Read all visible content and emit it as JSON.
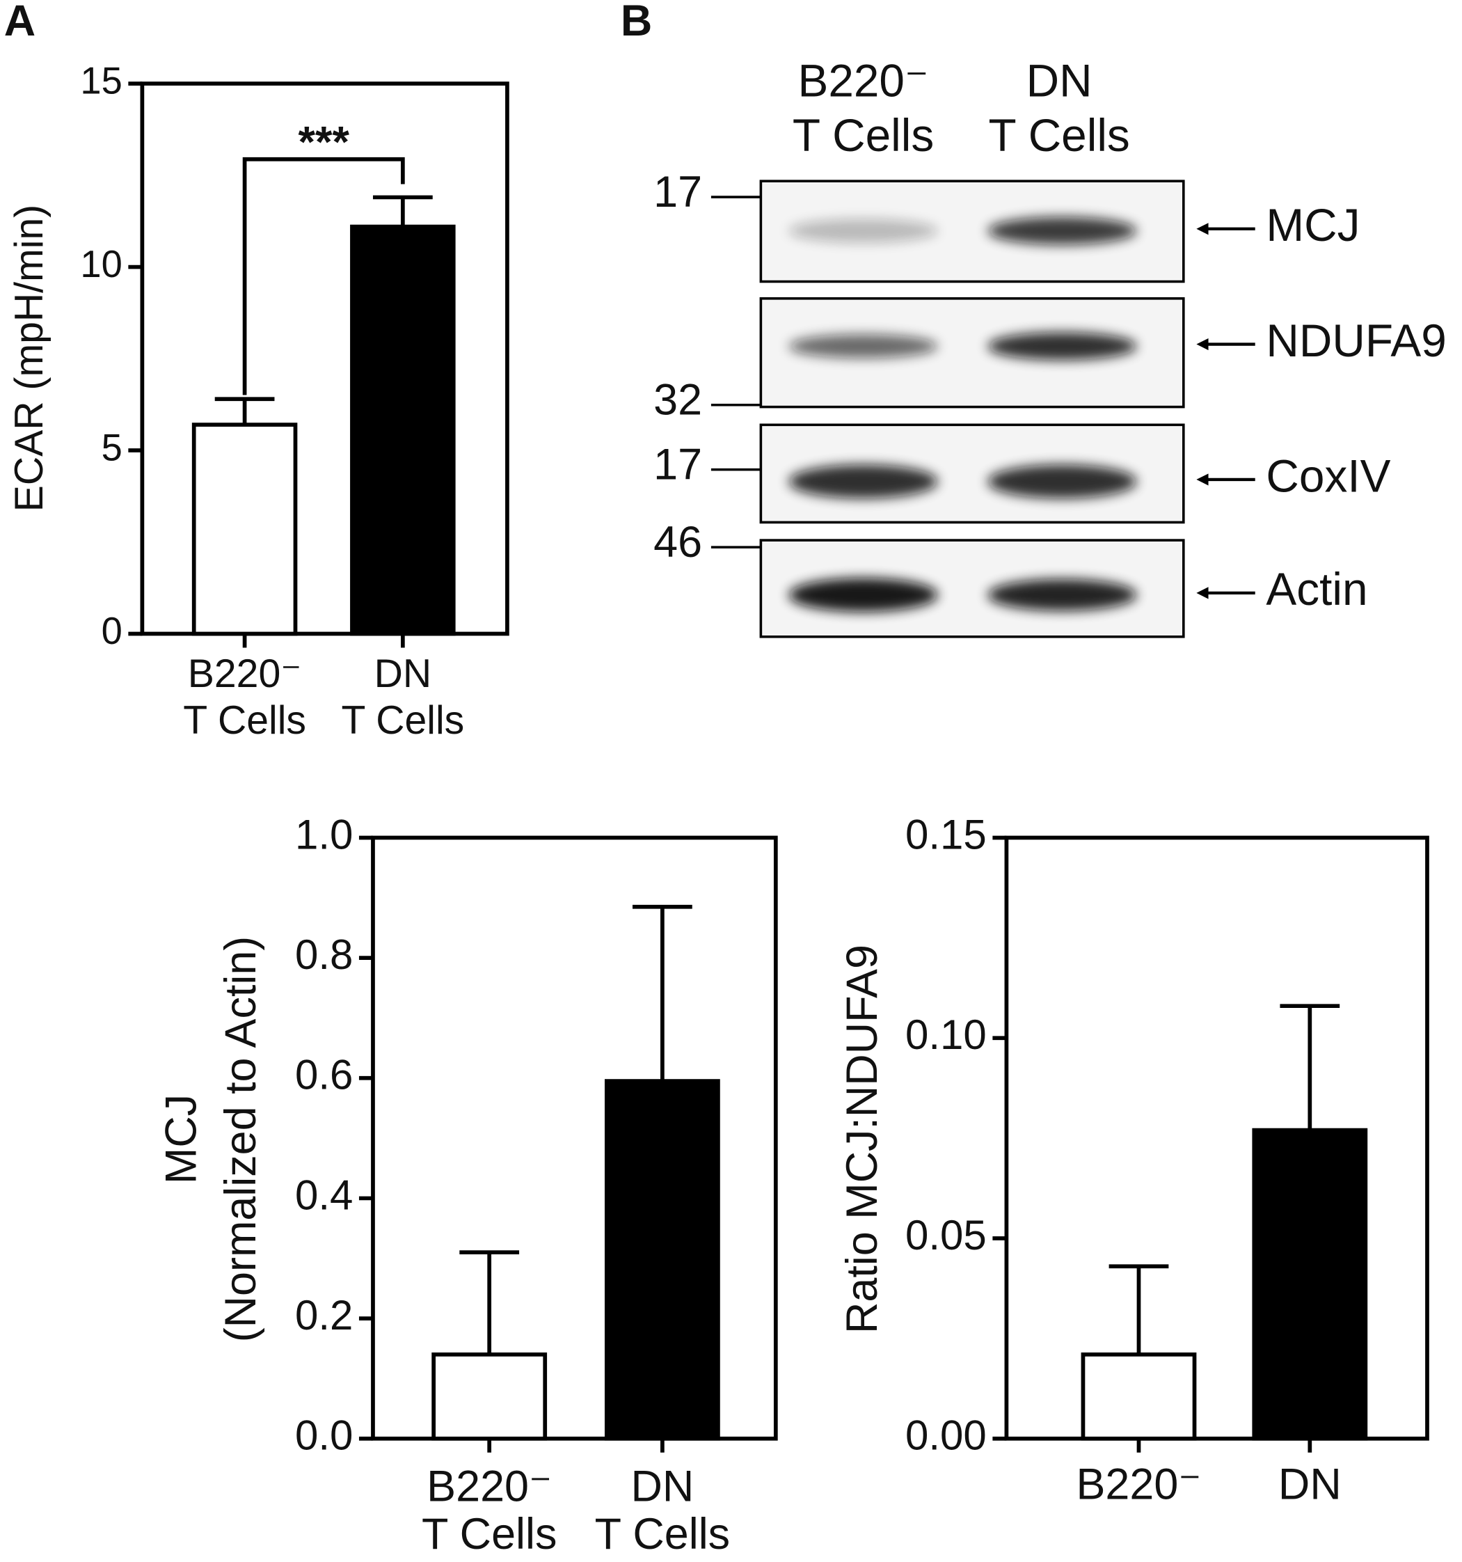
{
  "panel_labels": [
    "A",
    "B"
  ],
  "chart_data": [
    {
      "type": "bar",
      "ylabel": "ECAR (mpH/min)",
      "categories": [
        "B220⁻\nT Cells",
        "DN\nT Cells"
      ],
      "values": [
        5.7,
        11.1
      ],
      "errors": [
        0.7,
        0.8
      ],
      "colors": [
        "#ffffff",
        "#000000"
      ],
      "ylim": [
        0,
        15
      ],
      "yticks": [
        0,
        5,
        10,
        15
      ],
      "annotation": "***"
    },
    {
      "type": "bar",
      "ylabel": "MCJ\n(Normalized to Actin)",
      "categories": [
        "B220⁻\nT Cells",
        "DN\nT Cells"
      ],
      "values": [
        0.14,
        0.595
      ],
      "errors": [
        0.17,
        0.29
      ],
      "colors": [
        "#ffffff",
        "#000000"
      ],
      "ylim": [
        0,
        1
      ],
      "yticks": [
        {
          "value": 0,
          "label": "0.0"
        },
        0.2,
        0.4,
        0.6,
        0.8,
        {
          "value": 1,
          "label": "1.0"
        }
      ]
    },
    {
      "type": "bar",
      "ylabel": "Ratio MCJ:NDUFA9",
      "categories": [
        "B220⁻",
        "DN"
      ],
      "values": [
        0.021,
        0.077
      ],
      "errors": [
        0.022,
        0.031
      ],
      "colors": [
        "#ffffff",
        "#000000"
      ],
      "ylim": [
        0,
        0.15
      ],
      "yticks": [
        {
          "value": 0,
          "label": "0.00"
        },
        0.05,
        {
          "value": 0.1,
          "label": "0.10"
        },
        0.15
      ]
    }
  ],
  "blot": {
    "lanes": [
      "B220⁻\nT Cells",
      "DN\nT Cells"
    ],
    "markers": [
      17,
      32,
      17,
      46
    ],
    "bands": [
      "MCJ",
      "NDUFA9",
      "CoxIV",
      "Actin"
    ]
  }
}
